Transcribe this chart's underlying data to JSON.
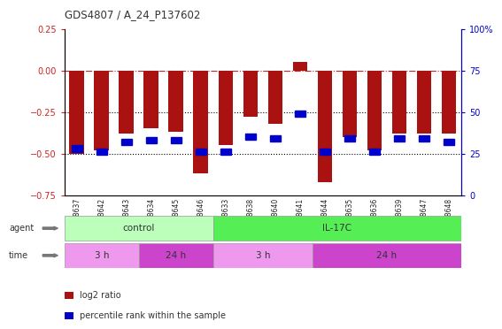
{
  "title": "GDS4807 / A_24_P137602",
  "samples": [
    "GSM808637",
    "GSM808642",
    "GSM808643",
    "GSM808634",
    "GSM808645",
    "GSM808646",
    "GSM808633",
    "GSM808638",
    "GSM808640",
    "GSM808641",
    "GSM808644",
    "GSM808635",
    "GSM808636",
    "GSM808639",
    "GSM808647",
    "GSM808648"
  ],
  "log2_ratio": [
    -0.5,
    -0.48,
    -0.38,
    -0.35,
    -0.37,
    -0.62,
    -0.45,
    -0.28,
    -0.32,
    0.05,
    -0.67,
    -0.4,
    -0.48,
    -0.38,
    -0.38,
    -0.38
  ],
  "percentile_rank": [
    28,
    26,
    32,
    33,
    33,
    26,
    26,
    35,
    34,
    49,
    26,
    34,
    26,
    34,
    34,
    32
  ],
  "ylim_left": [
    -0.75,
    0.25
  ],
  "ylim_right": [
    0,
    100
  ],
  "yticks_left": [
    -0.75,
    -0.5,
    -0.25,
    0,
    0.25
  ],
  "yticks_right": [
    0,
    25,
    50,
    75,
    100
  ],
  "bar_color": "#aa1111",
  "dot_color": "#0000cc",
  "dashed_line_color": "#cc2222",
  "dotted_line_color": "#000000",
  "agent_control_color": "#bbffbb",
  "agent_il17c_color": "#55ee55",
  "time_3h_color": "#ee99ee",
  "time_24h_color": "#cc44cc",
  "agent_groups": [
    {
      "label": "control",
      "start": 0,
      "end": 6
    },
    {
      "label": "IL-17C",
      "start": 6,
      "end": 16
    }
  ],
  "time_groups": [
    {
      "label": "3 h",
      "start": 0,
      "end": 3
    },
    {
      "label": "24 h",
      "start": 3,
      "end": 6
    },
    {
      "label": "3 h",
      "start": 6,
      "end": 10
    },
    {
      "label": "24 h",
      "start": 10,
      "end": 16
    }
  ],
  "n_samples": 16,
  "background_color": "#ffffff",
  "tick_label_color_left": "#cc2222",
  "tick_label_color_right": "#0000cc"
}
